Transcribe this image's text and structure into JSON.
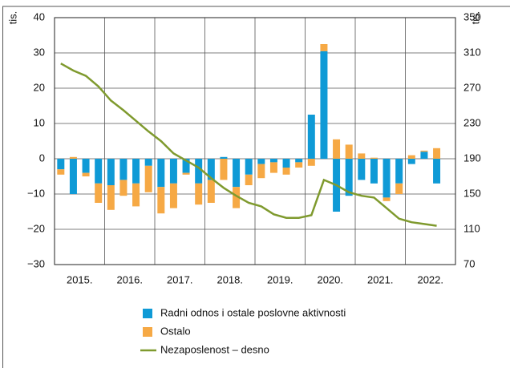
{
  "chart_data": {
    "type": "bar",
    "y_unit": "tis.",
    "y2_unit": "tis.",
    "categories": [
      null,
      null,
      null,
      null,
      null,
      null,
      null,
      null,
      null,
      null,
      null,
      null,
      null,
      null,
      null,
      null,
      null,
      null,
      null,
      null,
      null,
      null,
      null,
      null,
      null,
      null,
      null,
      null,
      null,
      null,
      null
    ],
    "year_labels": [
      "2015.",
      "2016.",
      "2017.",
      "2018.",
      "2019.",
      "2020.",
      "2021.",
      "2022."
    ],
    "series": [
      {
        "name": "Radni odnos i ostale poslovne aktivnosti",
        "color": "#0f9ad6",
        "type": "bar",
        "values": [
          -3,
          -10,
          -4,
          -7,
          -7.5,
          -6,
          -7,
          -2,
          -8,
          -7,
          -4,
          -7,
          -6,
          0.5,
          -8,
          -4.5,
          -1.5,
          -1,
          -2.5,
          -1,
          12.5,
          30.5,
          -15,
          -10.5,
          -6,
          -7,
          -11,
          -7,
          -1.5,
          2,
          -7
        ]
      },
      {
        "name": "Ostalo",
        "color": "#f6a945",
        "type": "bar",
        "values": [
          -1.5,
          0.5,
          -1,
          -5.5,
          -7,
          -4.5,
          -6.5,
          -7.5,
          -7.5,
          -7,
          -0.5,
          -6,
          -6.5,
          -6,
          -6,
          -3,
          -4,
          -3,
          -2,
          -1.5,
          -2,
          2,
          5.5,
          4,
          1.5,
          0.3,
          -1,
          -3,
          1,
          0.3,
          3
        ]
      },
      {
        "name": "Nezaposlenost – desno",
        "color": "#7f9a2e",
        "type": "line",
        "axis": "y2",
        "values": [
          298,
          290,
          284,
          272,
          256,
          245,
          233,
          221,
          210,
          196,
          188,
          180,
          168,
          157,
          148,
          140,
          136,
          127,
          123,
          123,
          126,
          166,
          160,
          152,
          148,
          146,
          134,
          122,
          118,
          116,
          114
        ]
      }
    ],
    "ylim": [
      -30,
      40
    ],
    "yticks": [
      {
        "value": -30,
        "label": "−30"
      },
      {
        "value": -20,
        "label": "−20"
      },
      {
        "value": -10,
        "label": "−10"
      },
      0,
      10,
      20,
      30,
      40
    ],
    "y2lim": [
      70,
      350
    ],
    "y2ticks": [
      70,
      110,
      150,
      190,
      230,
      270,
      310,
      350
    ],
    "grid": true
  }
}
